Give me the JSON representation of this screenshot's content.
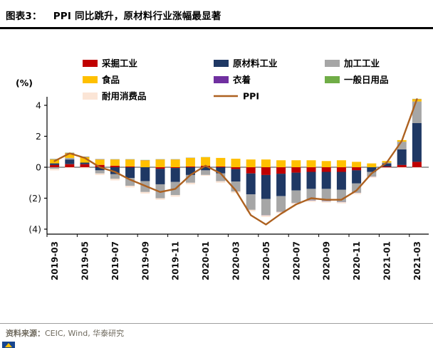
{
  "header": {
    "figure_label": "图表3：",
    "title": "PPI 同比跳升，原材料行业涨幅最显著"
  },
  "footer": {
    "source_label": "资料来源：",
    "source_text": "CEIC, Wind, 华泰研究"
  },
  "chart_data": {
    "type": "bar",
    "stacked": true,
    "title": "PPI 同比跳升，原材料行业涨幅最显著",
    "xlabel": "",
    "ylabel": "(%)",
    "ylim": [
      -4.6,
      4.6
    ],
    "yticks": [
      4,
      2,
      0,
      -2,
      -4
    ],
    "ytick_labels": [
      "4",
      "2",
      "0",
      "(2)",
      "(4)"
    ],
    "grid": false,
    "legend_position": "top",
    "xtick_every": 2,
    "categories": [
      "2019-03",
      "2019-04",
      "2019-05",
      "2019-06",
      "2019-07",
      "2019-08",
      "2019-09",
      "2019-10",
      "2019-11",
      "2019-12",
      "2020-01",
      "2020-02",
      "2020-03",
      "2020-04",
      "2020-05",
      "2020-06",
      "2020-07",
      "2020-08",
      "2020-09",
      "2020-10",
      "2020-11",
      "2020-12",
      "2021-01",
      "2021-02",
      "2021-03"
    ],
    "series": [
      {
        "key": "mining",
        "name": "采掘工业",
        "color": "#c00000",
        "values": [
          0.15,
          0.2,
          0.2,
          0.15,
          0.1,
          0.05,
          0.0,
          -0.1,
          -0.05,
          0.05,
          0.1,
          0.05,
          -0.12,
          -0.4,
          -0.5,
          -0.42,
          -0.35,
          -0.3,
          -0.3,
          -0.3,
          -0.2,
          0.0,
          0.05,
          0.15,
          0.35
        ]
      },
      {
        "key": "raw-materials",
        "name": "原材料工业",
        "color": "#1f3864",
        "values": [
          0.1,
          0.3,
          0.1,
          -0.2,
          -0.45,
          -0.7,
          -0.9,
          -1.0,
          -0.9,
          -0.5,
          -0.2,
          -0.4,
          -0.8,
          -1.35,
          -1.55,
          -1.45,
          -1.15,
          -1.1,
          -1.1,
          -1.15,
          -0.85,
          -0.3,
          0.2,
          1.0,
          2.5
        ]
      },
      {
        "key": "processing",
        "name": "加工工业",
        "color": "#a6a6a6",
        "values": [
          -0.1,
          0.1,
          0.0,
          -0.2,
          -0.3,
          -0.5,
          -0.7,
          -0.9,
          -0.85,
          -0.5,
          -0.3,
          -0.5,
          -0.65,
          -1.0,
          -1.05,
          -1.0,
          -0.8,
          -0.75,
          -0.8,
          -0.8,
          -0.6,
          -0.3,
          0.05,
          0.5,
          1.4
        ]
      },
      {
        "key": "food",
        "name": "食品",
        "color": "#ffc000",
        "values": [
          0.25,
          0.3,
          0.35,
          0.35,
          0.4,
          0.45,
          0.45,
          0.5,
          0.5,
          0.55,
          0.55,
          0.55,
          0.55,
          0.5,
          0.5,
          0.45,
          0.45,
          0.45,
          0.4,
          0.45,
          0.35,
          0.25,
          0.1,
          0.1,
          0.15
        ]
      },
      {
        "key": "clothing",
        "name": "衣着",
        "color": "#7030a0",
        "values": [
          0.02,
          0.02,
          0.02,
          0.02,
          0.01,
          0.01,
          0.01,
          0.01,
          0.01,
          0.01,
          0.0,
          0.0,
          0.0,
          0.0,
          -0.01,
          -0.01,
          -0.01,
          -0.01,
          -0.01,
          -0.01,
          -0.01,
          -0.01,
          -0.01,
          0.0,
          0.01
        ]
      },
      {
        "key": "daily-goods",
        "name": "一般日用品",
        "color": "#70ad47",
        "values": [
          0.02,
          0.02,
          0.02,
          0.01,
          0.01,
          0.01,
          0.01,
          0.01,
          0.01,
          0.01,
          0.01,
          0.0,
          0.0,
          0.0,
          0.0,
          0.0,
          0.0,
          0.0,
          0.0,
          0.0,
          0.0,
          0.0,
          0.0,
          0.0,
          0.01
        ]
      },
      {
        "key": "durables",
        "name": "耐用消费品",
        "color": "#fbe5d6",
        "values": [
          -0.1,
          -0.05,
          -0.08,
          -0.1,
          -0.1,
          -0.1,
          -0.1,
          -0.1,
          -0.1,
          -0.1,
          -0.05,
          -0.1,
          -0.1,
          -0.1,
          -0.1,
          -0.08,
          -0.08,
          -0.08,
          -0.08,
          -0.08,
          -0.08,
          -0.06,
          -0.05,
          -0.03,
          -0.02
        ]
      }
    ],
    "line_series": {
      "key": "ppi",
      "name": "PPI",
      "color": "#ad6120",
      "values": [
        0.4,
        0.9,
        0.6,
        0.0,
        -0.3,
        -0.8,
        -1.2,
        -1.6,
        -1.4,
        -0.5,
        0.1,
        -0.4,
        -1.5,
        -3.1,
        -3.7,
        -3.0,
        -2.4,
        -2.0,
        -2.1,
        -2.1,
        -1.5,
        -0.4,
        0.3,
        1.7,
        4.4
      ]
    },
    "legend_rows": [
      [
        "mining",
        "raw-materials",
        "processing"
      ],
      [
        "food",
        "clothing",
        "daily-goods"
      ],
      [
        "durables",
        "ppi"
      ]
    ]
  }
}
